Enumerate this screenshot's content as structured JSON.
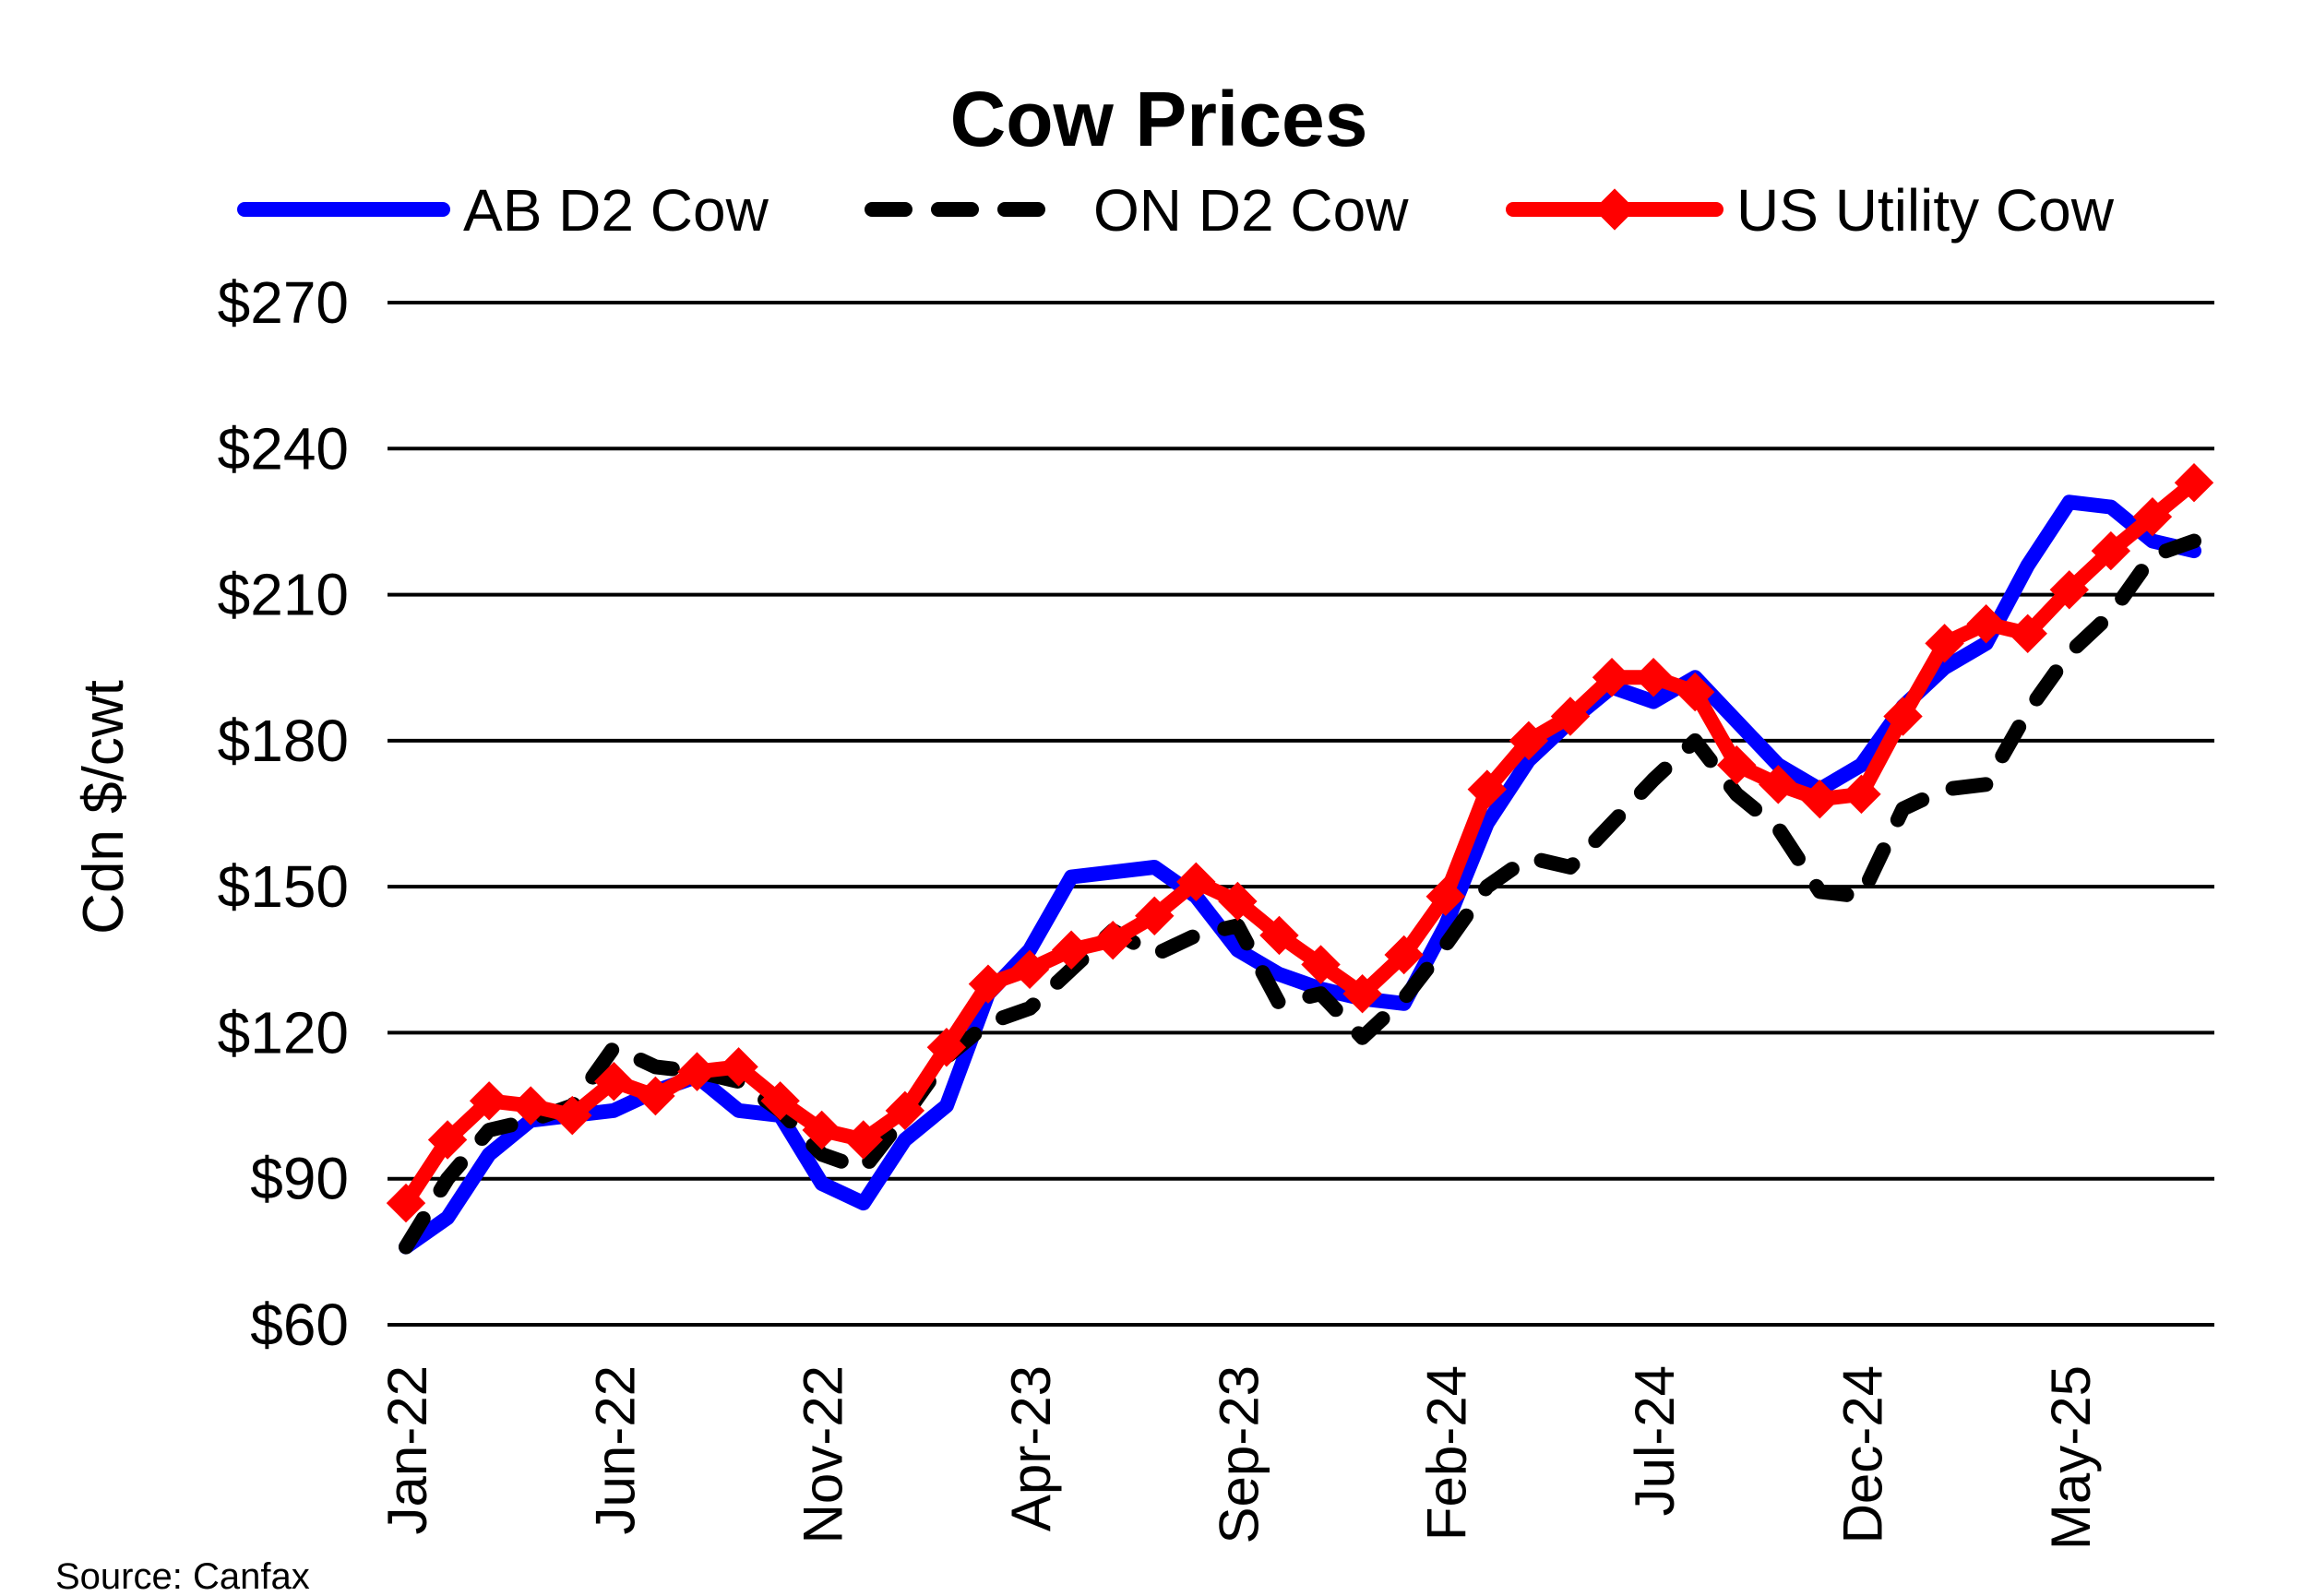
{
  "chart_data": {
    "type": "line",
    "title": "Cow Prices",
    "xlabel": "",
    "ylabel": "Cdn $/cwt",
    "ylim": [
      60,
      270
    ],
    "yticks": [
      60,
      90,
      120,
      150,
      180,
      210,
      240,
      270
    ],
    "ytick_labels": [
      "$60",
      "$90",
      "$120",
      "$150",
      "$180",
      "$210",
      "$240",
      "$270"
    ],
    "xtick_labels": [
      "Jan-22",
      "Jun-22",
      "Nov-22",
      "Apr-23",
      "Sep-23",
      "Feb-24",
      "Jul-24",
      "Dec-24",
      "May-25"
    ],
    "xtick_index": [
      0,
      5,
      10,
      15,
      20,
      25,
      30,
      35,
      40
    ],
    "grid": true,
    "legend_position": "top",
    "source": "Source:  Canfax",
    "series": [
      {
        "name": "AB D2 Cow",
        "color": "#0000ff",
        "style": "solid",
        "values": [
          76,
          82,
          95,
          102,
          103,
          104,
          108,
          111,
          104,
          103,
          89,
          85,
          98,
          105,
          128,
          137,
          152,
          153,
          154,
          148,
          137,
          132,
          129,
          127,
          126,
          142,
          163,
          176,
          184,
          191,
          188,
          193,
          184,
          175,
          170,
          175,
          187,
          195,
          200,
          216,
          229,
          228,
          221,
          219
        ]
      },
      {
        "name": "ON D2 Cow",
        "color": "#000000",
        "style": "dashed",
        "values": [
          76,
          90,
          100,
          102,
          105,
          117,
          113,
          112,
          110,
          104,
          95,
          92,
          103,
          115,
          122,
          125,
          133,
          141,
          136,
          140,
          142,
          126,
          128,
          119,
          127,
          138,
          150,
          156,
          154,
          163,
          172,
          180,
          169,
          162,
          149,
          148,
          166,
          170,
          171,
          186,
          198,
          206,
          218,
          221
        ]
      },
      {
        "name": "US Utility Cow",
        "color": "#ff0000",
        "style": "solid-diamond",
        "values": [
          85,
          98,
          106,
          105,
          103,
          110,
          107,
          112,
          113,
          106,
          100,
          98,
          104,
          117,
          130,
          133,
          137,
          139,
          144,
          151,
          147,
          140,
          134,
          128,
          136,
          148,
          170,
          180,
          185,
          193,
          193,
          190,
          175,
          171,
          168,
          169,
          185,
          200,
          204,
          202,
          211,
          219,
          226,
          233
        ]
      }
    ]
  }
}
